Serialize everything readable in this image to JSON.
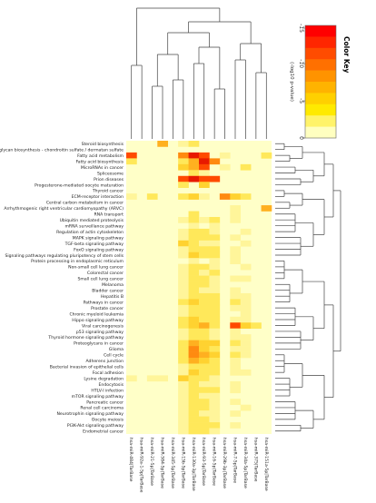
{
  "chart_data": {
    "type": "heatmap",
    "color_key": {
      "title": "Color Key",
      "label": "(-log10 p-value)",
      "ticks": [
        "-15",
        "-10",
        "-5",
        "0"
      ],
      "colors": [
        "#ff0000",
        "#ff2600",
        "#ff4c00",
        "#ff7000",
        "#ff9300",
        "#ffb300",
        "#ffd000",
        "#ffea00",
        "#fff36a",
        "#ffffc0"
      ]
    },
    "cell_colors": [
      "#ffffc8",
      "#fff59a",
      "#ffe85a",
      "#ffd230",
      "#ffb020",
      "#ff8a10",
      "#ff4a00",
      "#e81a00"
    ],
    "columns": [
      "hsa-miR-484|TarBase",
      "hsa-miR-92a-1-5p|TarBase",
      "hsa-miR-21-5p|TarBase",
      "hsa-miR-584-5p|TarBase",
      "hsa-miR-345-5p|TarBase",
      "hsa-miR-15b-5p|TarBase",
      "hsa-miR-130a-3p|TarBase",
      "hsa-miR-93-5p|TarBase",
      "hsa-miR-16-5p|TarBase",
      "hsa-miR-29b-3p|TarBase",
      "hsa-miR-7-5p|TarBase",
      "hsa-miR-34a-5p|TarBase",
      "hsa-miR-375|TarBase",
      "hsa-miR-151a-5p|TarBase"
    ],
    "rows": [
      "Steroid biosynthesis",
      "Glycosaminoglycan biosynthesis - chondroitin sulfate / dermatan sulfate",
      "Fatty acid metabolism",
      "Fatty acid biosynthesis",
      "MicroRNAs in cancer",
      "Spliceosome",
      "Prion diseases",
      "Progesterone-mediated oocyte maturation",
      "Thyroid cancer",
      "ECM-receptor interaction",
      "Central carbon metabolism in cancer",
      "Arrhythmogenic right ventricular cardiomyopathy (ARVC)",
      "RNA transport",
      "Ubiquitin mediated proteolysis",
      "mRNA surveillance pathway",
      "Regulation of actin cytoskeleton",
      "MAPK signaling pathway",
      "TGF-beta signaling pathway",
      "FoxO signaling pathway",
      "Signaling pathways regulating pluripotency of stem cells",
      "Protein processing in endoplasmic reticulum",
      "Non-small cell lung cancer",
      "Colorectal cancer",
      "Small cell lung cancer",
      "Melanoma",
      "Bladder cancer",
      "Hepatitis B",
      "Pathways in cancer",
      "Prostate cancer",
      "Chronic myeloid leukemia",
      "Hippo signaling pathway",
      "Viral carcinogenesis",
      "p53 signaling pathway",
      "Thyroid hormone signaling pathway",
      "Proteoglycans in cancer",
      "Glioma",
      "Cell cycle",
      "Adherens junction",
      "Bacterial invasion of epithelial cells",
      "Focal adhesion",
      "Lysine degradation",
      "Endocytosis",
      "HTLV-I infection",
      "mTOR signaling pathway",
      "Pancreatic cancer",
      "Renal cell carcinoma",
      "Neurotrophin signaling pathway",
      "Oocyte meiosis",
      "PI3K-Akt signaling pathway",
      "Endometrial cancer"
    ],
    "values": [
      [
        0,
        0,
        0,
        4,
        0,
        1,
        2,
        0,
        0,
        0,
        0,
        0,
        0,
        0
      ],
      [
        0,
        0,
        0,
        0,
        0,
        0,
        0,
        0,
        0,
        0,
        0,
        0,
        0,
        0
      ],
      [
        6,
        0,
        0,
        0,
        0,
        5,
        7,
        6,
        0,
        1,
        0,
        0,
        0,
        2
      ],
      [
        2,
        0,
        0,
        0,
        0,
        2,
        4,
        7,
        5,
        0,
        0,
        0,
        0,
        0
      ],
      [
        0,
        0,
        0,
        0,
        0,
        3,
        4,
        6,
        0,
        1,
        0,
        2,
        0,
        0
      ],
      [
        0,
        0,
        0,
        0,
        0,
        0,
        2,
        1,
        0,
        0,
        0,
        0,
        0,
        0
      ],
      [
        0,
        0,
        0,
        0,
        0,
        6,
        7,
        6,
        6,
        0,
        0,
        0,
        0,
        0
      ],
      [
        0,
        0,
        0,
        0,
        0,
        2,
        0,
        3,
        0,
        0,
        0,
        0,
        0,
        0
      ],
      [
        0,
        0,
        0,
        0,
        0,
        0,
        0,
        0,
        0,
        0,
        0,
        0,
        0,
        0
      ],
      [
        1,
        0,
        2,
        0,
        0,
        2,
        3,
        1,
        0,
        5,
        3,
        2,
        0,
        0
      ],
      [
        0,
        0,
        0,
        0,
        0,
        0,
        0,
        0,
        0,
        0,
        0,
        0,
        0,
        0
      ],
      [
        0,
        0,
        0,
        0,
        0,
        0,
        0,
        0,
        0,
        0,
        1,
        0,
        0,
        4
      ],
      [
        0,
        0,
        0,
        0,
        0,
        0,
        2,
        0,
        0,
        0,
        1,
        0,
        0,
        0
      ],
      [
        0,
        0,
        0,
        0,
        0,
        1,
        2,
        1,
        2,
        0,
        1,
        0,
        0,
        0
      ],
      [
        0,
        0,
        0,
        0,
        0,
        0,
        1,
        0,
        1,
        0,
        0,
        0,
        0,
        0
      ],
      [
        0,
        0,
        0,
        0,
        0,
        1,
        2,
        2,
        1,
        0,
        0,
        1,
        0,
        0
      ],
      [
        0,
        0,
        0,
        0,
        0,
        1,
        2,
        2,
        2,
        0,
        1,
        0,
        0,
        0
      ],
      [
        0,
        0,
        0,
        0,
        0,
        3,
        2,
        1,
        1,
        0,
        0,
        1,
        0,
        0
      ],
      [
        0,
        0,
        0,
        0,
        0,
        1,
        2,
        2,
        2,
        0,
        1,
        0,
        0,
        0
      ],
      [
        0,
        0,
        0,
        0,
        0,
        1,
        3,
        2,
        2,
        0,
        1,
        0,
        0,
        0
      ],
      [
        0,
        0,
        0,
        0,
        0,
        0,
        1,
        0,
        1,
        0,
        1,
        0,
        0,
        0
      ],
      [
        0,
        0,
        0,
        0,
        0,
        1,
        2,
        2,
        1,
        0,
        0,
        1,
        0,
        0
      ],
      [
        0,
        0,
        0,
        0,
        0,
        1,
        2,
        1,
        2,
        0,
        0,
        0,
        0,
        0
      ],
      [
        0,
        0,
        0,
        0,
        0,
        1,
        2,
        2,
        1,
        0,
        1,
        1,
        0,
        0
      ],
      [
        0,
        0,
        0,
        0,
        0,
        1,
        2,
        2,
        1,
        0,
        0,
        0,
        0,
        0
      ],
      [
        0,
        0,
        0,
        0,
        0,
        1,
        2,
        1,
        1,
        0,
        1,
        0,
        0,
        0
      ],
      [
        0,
        0,
        0,
        0,
        0,
        1,
        2,
        2,
        2,
        0,
        1,
        1,
        0,
        0
      ],
      [
        0,
        0,
        0,
        0,
        0,
        2,
        3,
        2,
        2,
        0,
        2,
        1,
        0,
        0
      ],
      [
        0,
        0,
        0,
        0,
        0,
        1,
        2,
        2,
        2,
        0,
        1,
        1,
        0,
        0
      ],
      [
        0,
        0,
        0,
        0,
        0,
        1,
        2,
        2,
        2,
        0,
        0,
        1,
        0,
        0
      ],
      [
        0,
        0,
        0,
        0,
        0,
        2,
        3,
        2,
        2,
        0,
        1,
        1,
        0,
        0
      ],
      [
        0,
        0,
        0,
        0,
        0,
        2,
        3,
        4,
        2,
        0,
        6,
        3,
        2,
        0
      ],
      [
        0,
        0,
        0,
        0,
        0,
        1,
        2,
        2,
        1,
        0,
        1,
        0,
        0,
        0
      ],
      [
        0,
        0,
        0,
        0,
        0,
        1,
        2,
        2,
        1,
        0,
        1,
        1,
        0,
        0
      ],
      [
        0,
        0,
        0,
        0,
        0,
        2,
        4,
        3,
        3,
        0,
        2,
        1,
        0,
        0
      ],
      [
        0,
        0,
        0,
        0,
        0,
        2,
        5,
        3,
        2,
        0,
        1,
        1,
        0,
        0
      ],
      [
        0,
        0,
        0,
        0,
        0,
        2,
        5,
        4,
        3,
        0,
        2,
        1,
        0,
        0
      ],
      [
        0,
        0,
        0,
        0,
        0,
        2,
        4,
        3,
        2,
        0,
        1,
        0,
        0,
        0
      ],
      [
        0,
        0,
        0,
        0,
        0,
        1,
        2,
        2,
        2,
        0,
        1,
        0,
        0,
        0
      ],
      [
        0,
        0,
        0,
        0,
        0,
        1,
        3,
        2,
        2,
        0,
        1,
        1,
        0,
        0
      ],
      [
        1,
        0,
        1,
        1,
        0,
        3,
        2,
        2,
        1,
        0,
        0,
        0,
        0,
        0
      ],
      [
        0,
        0,
        0,
        0,
        0,
        1,
        2,
        1,
        1,
        0,
        1,
        0,
        0,
        0
      ],
      [
        0,
        0,
        0,
        0,
        0,
        1,
        2,
        2,
        2,
        0,
        1,
        0,
        0,
        0
      ],
      [
        0,
        0,
        0,
        0,
        0,
        1,
        2,
        1,
        1,
        0,
        0,
        0,
        0,
        0
      ],
      [
        0,
        0,
        0,
        0,
        0,
        1,
        2,
        2,
        1,
        0,
        1,
        0,
        0,
        0
      ],
      [
        0,
        0,
        0,
        0,
        0,
        1,
        2,
        2,
        1,
        0,
        0,
        1,
        0,
        0
      ],
      [
        0,
        0,
        0,
        0,
        0,
        1,
        2,
        1,
        1,
        0,
        1,
        0,
        0,
        0
      ],
      [
        0,
        0,
        0,
        0,
        0,
        1,
        2,
        2,
        1,
        0,
        0,
        0,
        0,
        0
      ],
      [
        0,
        0,
        0,
        0,
        0,
        1,
        2,
        2,
        2,
        0,
        1,
        0,
        0,
        0
      ],
      [
        0,
        0,
        0,
        0,
        0,
        1,
        2,
        2,
        1,
        0,
        0,
        0,
        0,
        0
      ]
    ]
  }
}
